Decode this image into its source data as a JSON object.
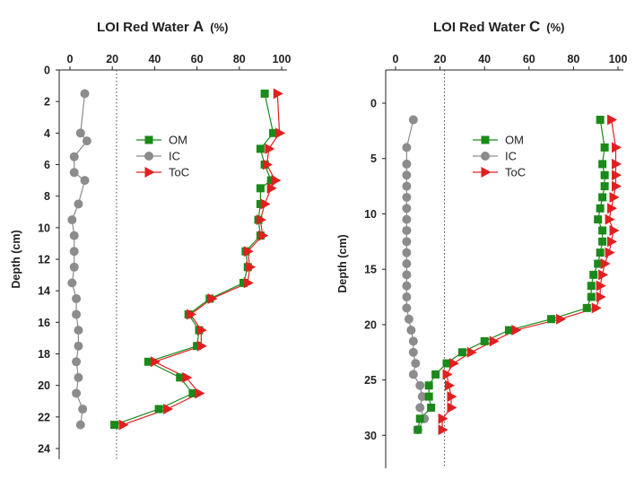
{
  "chart_data": [
    {
      "type": "scatter",
      "title": {
        "prefix": "LOI Red Water",
        "letter": "A",
        "unit": "(%)"
      },
      "ylabel": "Depth (cm)",
      "xlim": [
        0,
        100
      ],
      "ylim": [
        0,
        24
      ],
      "y_inverted": true,
      "xticks": [
        0,
        20,
        40,
        60,
        80,
        100
      ],
      "yticks": [
        0,
        2,
        4,
        6,
        8,
        10,
        12,
        14,
        16,
        18,
        20,
        22,
        24
      ],
      "reference_line_x": 22,
      "legend": {
        "position": "center",
        "entries": [
          "OM",
          "IC",
          "ToC"
        ]
      },
      "series": [
        {
          "name": "OM",
          "color": "#1a8a1a",
          "marker": "square",
          "points": [
            [
              92,
              1.5
            ],
            [
              96,
              4
            ],
            [
              90,
              5
            ],
            [
              92,
              6
            ],
            [
              95,
              7
            ],
            [
              90,
              7.5
            ],
            [
              90,
              8.5
            ],
            [
              89,
              9.5
            ],
            [
              90,
              10.5
            ],
            [
              83,
              11.5
            ],
            [
              84,
              12.5
            ],
            [
              82,
              13.5
            ],
            [
              66,
              14.5
            ],
            [
              56,
              15.5
            ],
            [
              61,
              16.5
            ],
            [
              60,
              17.5
            ],
            [
              37,
              18.5
            ],
            [
              52,
              19.5
            ],
            [
              58,
              20.5
            ],
            [
              42,
              21.5
            ],
            [
              21,
              22.5
            ]
          ]
        },
        {
          "name": "IC",
          "color": "#8c8c8c",
          "marker": "circle",
          "points": [
            [
              7,
              1.5
            ],
            [
              5,
              4
            ],
            [
              8,
              4.5
            ],
            [
              2,
              5.5
            ],
            [
              2,
              6.5
            ],
            [
              7,
              7
            ],
            [
              4,
              8.5
            ],
            [
              1,
              9.5
            ],
            [
              2,
              10.5
            ],
            [
              2,
              11.5
            ],
            [
              2,
              12.5
            ],
            [
              1,
              13.5
            ],
            [
              3,
              14.5
            ],
            [
              3,
              15.5
            ],
            [
              4,
              16.5
            ],
            [
              4,
              17.5
            ],
            [
              3,
              18.5
            ],
            [
              4,
              19.5
            ],
            [
              3,
              20.5
            ],
            [
              6,
              21.5
            ],
            [
              5,
              22.5
            ]
          ]
        },
        {
          "name": "ToC",
          "color": "#e02020",
          "marker": "triangle-right",
          "points": [
            [
              98,
              1.5
            ],
            [
              99,
              4
            ],
            [
              94,
              5
            ],
            [
              93,
              6
            ],
            [
              97,
              7
            ],
            [
              95,
              7.5
            ],
            [
              92,
              8.5
            ],
            [
              90,
              9.5
            ],
            [
              91,
              10.5
            ],
            [
              84,
              11.5
            ],
            [
              85,
              12.5
            ],
            [
              84,
              13.5
            ],
            [
              67,
              14.5
            ],
            [
              57,
              15.5
            ],
            [
              62,
              16.5
            ],
            [
              62,
              17.5
            ],
            [
              40,
              18.5
            ],
            [
              55,
              19.5
            ],
            [
              61,
              20.5
            ],
            [
              46,
              21.5
            ],
            [
              25,
              22.5
            ]
          ]
        }
      ]
    },
    {
      "type": "scatter",
      "title": {
        "prefix": "LOI Red Water",
        "letter": "C",
        "unit": "(%)"
      },
      "ylabel": "Depth (cm)",
      "xlim": [
        0,
        100
      ],
      "ylim": [
        -3,
        32
      ],
      "y_inverted": true,
      "xticks": [
        0,
        20,
        40,
        60,
        80,
        100
      ],
      "yticks": [
        0,
        5,
        10,
        15,
        20,
        25,
        30
      ],
      "reference_line_x": 22,
      "legend": {
        "position": "center",
        "entries": [
          "OM",
          "IC",
          "ToC"
        ]
      },
      "series": [
        {
          "name": "OM",
          "color": "#1a8a1a",
          "marker": "square",
          "points": [
            [
              92,
              1.5
            ],
            [
              94,
              4
            ],
            [
              93,
              5.5
            ],
            [
              94,
              6.5
            ],
            [
              94,
              7.5
            ],
            [
              93,
              8.5
            ],
            [
              92,
              9.5
            ],
            [
              91,
              10.5
            ],
            [
              93,
              11.5
            ],
            [
              93,
              12.5
            ],
            [
              92,
              13.5
            ],
            [
              91,
              14.5
            ],
            [
              89,
              15.5
            ],
            [
              88,
              16.5
            ],
            [
              88,
              17.5
            ],
            [
              86,
              18.5
            ],
            [
              70,
              19.5
            ],
            [
              51,
              20.5
            ],
            [
              40,
              21.5
            ],
            [
              30,
              22.5
            ],
            [
              23,
              23.5
            ],
            [
              18,
              24.5
            ],
            [
              15,
              25.5
            ],
            [
              15,
              26.5
            ],
            [
              16,
              27.5
            ],
            [
              11,
              28.5
            ],
            [
              10,
              29.5
            ]
          ]
        },
        {
          "name": "IC",
          "color": "#8c8c8c",
          "marker": "circle",
          "points": [
            [
              8,
              1.5
            ],
            [
              5,
              4
            ],
            [
              5,
              5.5
            ],
            [
              5,
              6.5
            ],
            [
              5,
              7.5
            ],
            [
              5,
              8.5
            ],
            [
              5,
              9.5
            ],
            [
              5,
              10.5
            ],
            [
              5,
              11.5
            ],
            [
              5,
              12.5
            ],
            [
              5,
              13.5
            ],
            [
              5,
              14.5
            ],
            [
              5,
              15.5
            ],
            [
              5,
              16.5
            ],
            [
              5,
              17.5
            ],
            [
              5,
              18.5
            ],
            [
              6,
              19.5
            ],
            [
              7,
              20.5
            ],
            [
              8,
              21.5
            ],
            [
              8,
              22.5
            ],
            [
              9,
              23.5
            ],
            [
              8,
              24.5
            ],
            [
              11,
              25.5
            ],
            [
              12,
              26.5
            ],
            [
              11,
              27.5
            ],
            [
              13,
              28.5
            ],
            [
              10,
              29.5
            ]
          ]
        },
        {
          "name": "ToC",
          "color": "#e02020",
          "marker": "triangle-right",
          "points": [
            [
              97,
              1.5
            ],
            [
              99,
              4
            ],
            [
              99,
              5.5
            ],
            [
              99,
              6.5
            ],
            [
              99,
              7.5
            ],
            [
              98,
              8.5
            ],
            [
              97,
              9.5
            ],
            [
              96,
              10.5
            ],
            [
              98,
              11.5
            ],
            [
              97,
              12.5
            ],
            [
              96,
              13.5
            ],
            [
              94,
              14.5
            ],
            [
              93,
              15.5
            ],
            [
              92,
              16.5
            ],
            [
              92,
              17.5
            ],
            [
              90,
              18.5
            ],
            [
              74,
              19.5
            ],
            [
              54,
              20.5
            ],
            [
              44,
              21.5
            ],
            [
              34,
              22.5
            ],
            [
              26,
              23.5
            ],
            [
              23,
              24.5
            ],
            [
              24,
              25.5
            ],
            [
              25,
              26.5
            ],
            [
              25,
              27.5
            ],
            [
              21,
              28.5
            ],
            [
              21,
              29.5
            ]
          ]
        }
      ]
    }
  ]
}
